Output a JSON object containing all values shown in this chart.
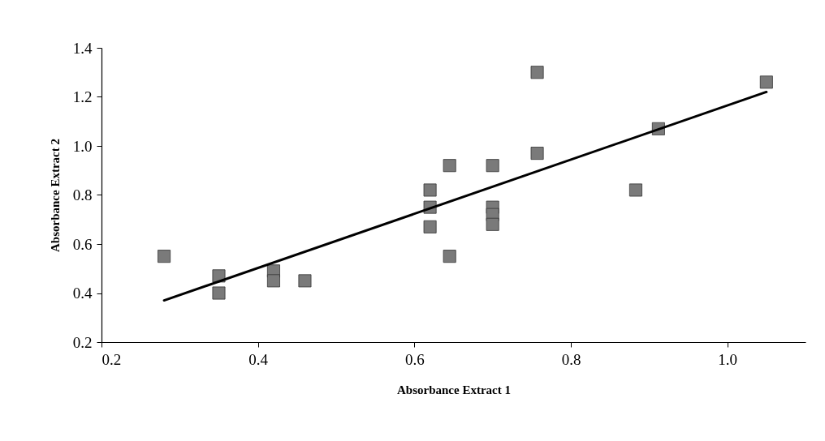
{
  "chart_data": {
    "type": "scatter",
    "xlabel": "Absorbance Extract 1",
    "ylabel": "Absorbance Extract 2",
    "xlim": [
      0.2,
      1.1
    ],
    "xticks": [
      0.2,
      0.4,
      0.6,
      {
        "value": 0.8,
        "label": "0.8"
      },
      {
        "value": 1.0,
        "label": "1.0"
      }
    ],
    "ylim": [
      0.2,
      1.4
    ],
    "yticks": [
      0.2,
      0.4,
      0.6,
      0.8,
      {
        "value": 1.0,
        "label": "1.0"
      },
      1.2,
      1.4
    ],
    "grid": false,
    "marker": "square",
    "series": [
      {
        "color": "#7a7a7a",
        "x": [
          0.28,
          0.35,
          0.35,
          0.42,
          0.42,
          0.46,
          0.62,
          0.62,
          0.62,
          0.645,
          0.645,
          0.7,
          0.7,
          0.7,
          0.7,
          0.757,
          0.757,
          0.883,
          0.912,
          1.05
        ],
        "values": [
          0.55,
          0.47,
          0.4,
          0.49,
          0.45,
          0.45,
          0.82,
          0.75,
          0.67,
          0.92,
          0.55,
          0.92,
          0.75,
          0.72,
          0.68,
          1.3,
          0.97,
          0.82,
          1.07,
          1.26
        ]
      },
      {
        "type": "line",
        "marker": "none",
        "color": "#000000",
        "x": [
          0.28,
          1.05
        ],
        "values": [
          0.37,
          1.22
        ]
      }
    ]
  }
}
